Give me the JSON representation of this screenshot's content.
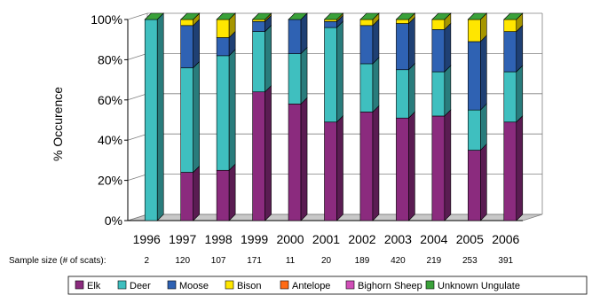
{
  "chart_data": {
    "type": "bar",
    "stacked": true,
    "percent": true,
    "style": "3d",
    "title": "",
    "xlabel": "",
    "ylabel": "% Occurence",
    "ylim": [
      0,
      100
    ],
    "y_ticks": [
      "0%",
      "20%",
      "40%",
      "60%",
      "80%",
      "100%"
    ],
    "grid": true,
    "legend_position": "bottom",
    "categories": [
      "1996",
      "1997",
      "1998",
      "1999",
      "2000",
      "2001",
      "2002",
      "2003",
      "2004",
      "2005",
      "2006"
    ],
    "sample_size_label": "Sample size (# of scats):",
    "sample_sizes": [
      "2",
      "120",
      "107",
      "171",
      "11",
      "20",
      "189",
      "420",
      "219",
      "253",
      "391"
    ],
    "series": [
      {
        "name": "Elk",
        "color": "#8b2b7e",
        "values": [
          0,
          24,
          25,
          64,
          58,
          49,
          54,
          51,
          52,
          35,
          49
        ]
      },
      {
        "name": "Deer",
        "color": "#3fbfbf",
        "values": [
          100,
          52,
          57,
          30,
          25,
          47,
          24,
          24,
          22,
          20,
          25
        ]
      },
      {
        "name": "Moose",
        "color": "#2f62b3",
        "values": [
          0,
          21,
          9,
          5,
          17,
          3,
          19,
          23,
          21,
          34,
          20
        ]
      },
      {
        "name": "Bison",
        "color": "#ffe600",
        "values": [
          0,
          3,
          9,
          1,
          0,
          1,
          3,
          2,
          5,
          11,
          6
        ]
      },
      {
        "name": "Antelope",
        "color": "#ff6a13",
        "values": [
          0,
          0,
          0,
          0,
          0,
          0,
          0,
          0,
          0,
          0,
          0
        ]
      },
      {
        "name": "Bighorn Sheep",
        "color": "#d14fb8",
        "values": [
          0,
          0,
          0,
          0,
          0,
          0,
          0,
          0,
          0,
          0,
          0
        ]
      },
      {
        "name": "Unknown Ungulate",
        "color": "#3aa13a",
        "values": [
          0,
          0,
          0,
          0,
          0,
          0,
          0,
          0,
          0,
          0,
          0
        ]
      }
    ]
  }
}
